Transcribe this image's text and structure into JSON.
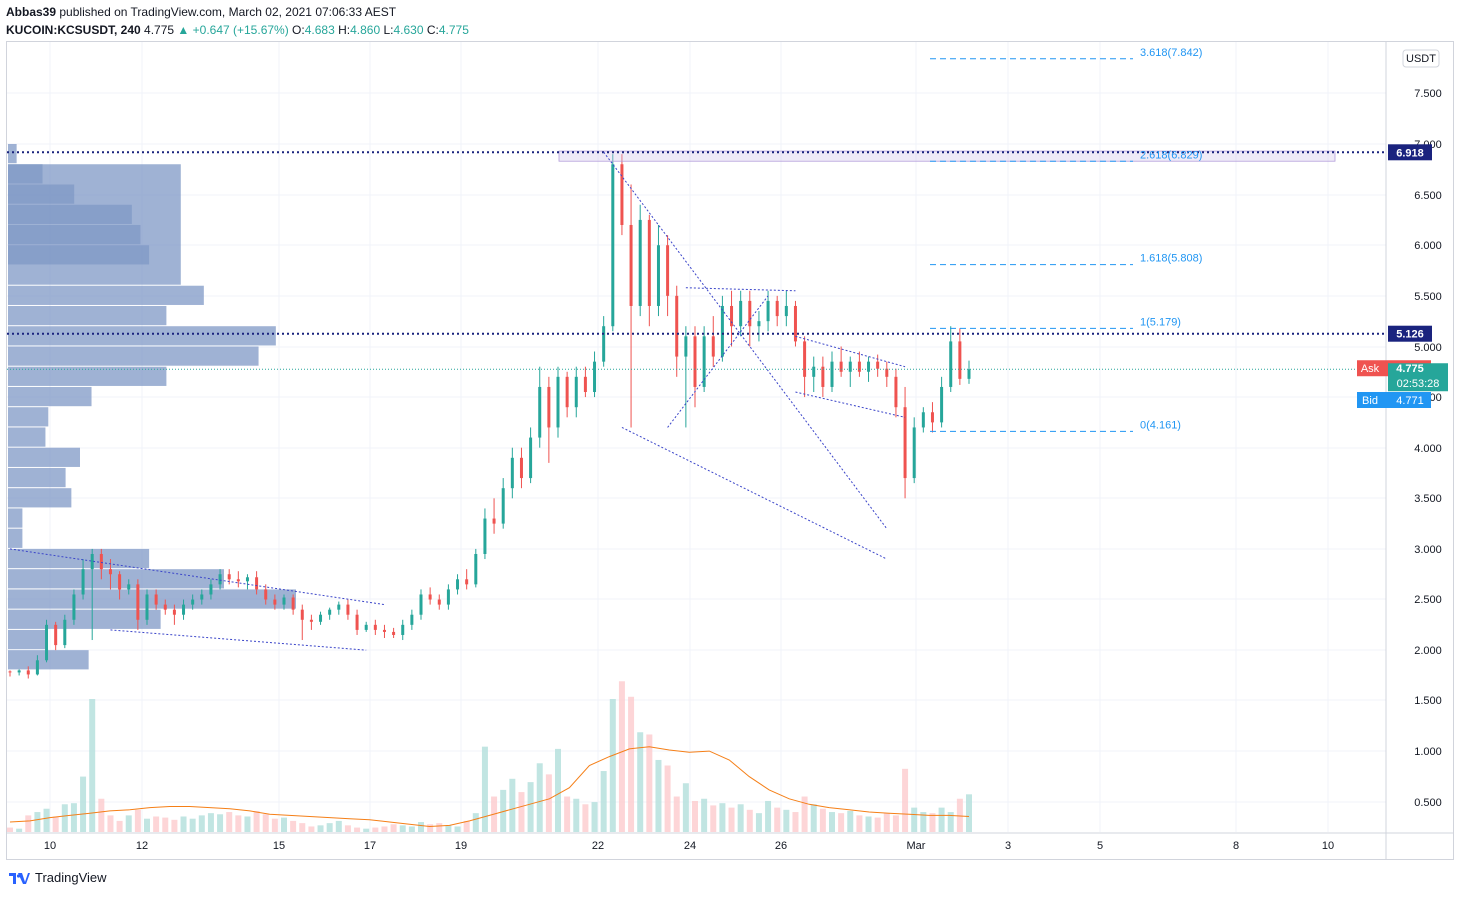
{
  "header": {
    "author": "Abbas39",
    "published_text": "published on TradingView.com, March 02, 2021 07:06:33 AEST",
    "symbol": "KUCOIN:KCSUSDT, 240",
    "last": "4.775",
    "change": "▲ +0.647 (+15.67%)",
    "o_label": "O:",
    "o_value": "4.683",
    "h_label": "H:",
    "h_value": "4.860",
    "l_label": "L:",
    "l_value": "4.630",
    "c_label": "C:",
    "c_value": "4.775"
  },
  "footer": {
    "brand": "TradingView"
  },
  "colors": {
    "up": "#26a69a",
    "down": "#ef5350",
    "vp": "#7f98c6",
    "pattern": "#3b45c9",
    "fib": "#2196f3",
    "ma": "#f57f17"
  },
  "chart_data": {
    "type": "candlestick",
    "currency_label": "USDT",
    "y_ticks": [
      "7.500",
      "7.000",
      "6.500",
      "6.000",
      "5.500",
      "5.000",
      "4.500",
      "4.000",
      "3.500",
      "3.000",
      "2.500",
      "2.000",
      "1.500",
      "1.000",
      "0.500"
    ],
    "x_ticks": [
      "10",
      "12",
      "15",
      "17",
      "19",
      "22",
      "24",
      "26",
      "Mar",
      "3",
      "5",
      "8",
      "10"
    ],
    "last_price": 4.775,
    "countdown": "02:53:28",
    "ask": {
      "label": "Ask",
      "value": "4.775"
    },
    "bid": {
      "label": "Bid",
      "value": "4.771"
    },
    "horizontal_levels": [
      {
        "value": 6.918,
        "label": "6.918"
      },
      {
        "value": 5.126,
        "label": "5.126"
      }
    ],
    "fib_levels": [
      {
        "label": "3.618(7.842)",
        "value": 7.842
      },
      {
        "label": "2.618(6.829)",
        "value": 6.829
      },
      {
        "label": "1.618(5.808)",
        "value": 5.808
      },
      {
        "label": "1(5.179)",
        "value": 5.179
      },
      {
        "label": "0(4.161)",
        "value": 4.161
      }
    ],
    "candles": [
      [
        1.79,
        1.8,
        1.74,
        1.78
      ],
      [
        1.78,
        1.81,
        1.75,
        1.8
      ],
      [
        1.8,
        1.84,
        1.72,
        1.76
      ],
      [
        1.76,
        1.95,
        1.75,
        1.9
      ],
      [
        1.9,
        2.3,
        1.88,
        2.25
      ],
      [
        2.25,
        2.28,
        2.0,
        2.05
      ],
      [
        2.05,
        2.35,
        2.02,
        2.3
      ],
      [
        2.3,
        2.6,
        2.25,
        2.55
      ],
      [
        2.55,
        2.9,
        2.5,
        2.8
      ],
      [
        2.8,
        3.0,
        2.1,
        2.95
      ],
      [
        2.95,
        3.0,
        2.7,
        2.8
      ],
      [
        2.8,
        2.9,
        2.6,
        2.75
      ],
      [
        2.75,
        2.78,
        2.5,
        2.6
      ],
      [
        2.6,
        2.7,
        2.55,
        2.65
      ],
      [
        2.65,
        2.7,
        2.2,
        2.3
      ],
      [
        2.3,
        2.6,
        2.25,
        2.55
      ],
      [
        2.55,
        2.6,
        2.4,
        2.45
      ],
      [
        2.45,
        2.5,
        2.35,
        2.4
      ],
      [
        2.4,
        2.45,
        2.25,
        2.35
      ],
      [
        2.35,
        2.5,
        2.3,
        2.45
      ],
      [
        2.45,
        2.55,
        2.4,
        2.5
      ],
      [
        2.5,
        2.6,
        2.45,
        2.55
      ],
      [
        2.55,
        2.7,
        2.5,
        2.65
      ],
      [
        2.65,
        2.8,
        2.6,
        2.75
      ],
      [
        2.75,
        2.8,
        2.65,
        2.7
      ],
      [
        2.7,
        2.78,
        2.62,
        2.68
      ],
      [
        2.68,
        2.75,
        2.6,
        2.72
      ],
      [
        2.72,
        2.78,
        2.55,
        2.6
      ],
      [
        2.6,
        2.65,
        2.45,
        2.5
      ],
      [
        2.5,
        2.55,
        2.4,
        2.45
      ],
      [
        2.45,
        2.55,
        2.4,
        2.52
      ],
      [
        2.52,
        2.55,
        2.35,
        2.4
      ],
      [
        2.4,
        2.45,
        2.1,
        2.3
      ],
      [
        2.3,
        2.35,
        2.2,
        2.28
      ],
      [
        2.28,
        2.38,
        2.25,
        2.35
      ],
      [
        2.35,
        2.42,
        2.3,
        2.4
      ],
      [
        2.4,
        2.48,
        2.35,
        2.45
      ],
      [
        2.45,
        2.5,
        2.3,
        2.35
      ],
      [
        2.35,
        2.4,
        2.15,
        2.2
      ],
      [
        2.2,
        2.28,
        2.18,
        2.25
      ],
      [
        2.25,
        2.3,
        2.15,
        2.2
      ],
      [
        2.2,
        2.25,
        2.12,
        2.18
      ],
      [
        2.18,
        2.22,
        2.12,
        2.15
      ],
      [
        2.15,
        2.3,
        2.1,
        2.25
      ],
      [
        2.25,
        2.4,
        2.2,
        2.35
      ],
      [
        2.35,
        2.6,
        2.3,
        2.55
      ],
      [
        2.55,
        2.62,
        2.45,
        2.5
      ],
      [
        2.5,
        2.55,
        2.4,
        2.45
      ],
      [
        2.45,
        2.65,
        2.4,
        2.6
      ],
      [
        2.6,
        2.75,
        2.55,
        2.7
      ],
      [
        2.7,
        2.8,
        2.6,
        2.65
      ],
      [
        2.65,
        3.0,
        2.62,
        2.95
      ],
      [
        2.95,
        3.4,
        2.9,
        3.3
      ],
      [
        3.3,
        3.5,
        3.15,
        3.25
      ],
      [
        3.25,
        3.7,
        3.2,
        3.6
      ],
      [
        3.6,
        4.0,
        3.5,
        3.9
      ],
      [
        3.9,
        4.0,
        3.6,
        3.7
      ],
      [
        3.7,
        4.2,
        3.65,
        4.1
      ],
      [
        4.1,
        4.8,
        4.0,
        4.6
      ],
      [
        4.6,
        4.7,
        3.85,
        4.2
      ],
      [
        4.2,
        4.8,
        4.1,
        4.7
      ],
      [
        4.7,
        4.75,
        4.3,
        4.4
      ],
      [
        4.4,
        4.8,
        4.3,
        4.7
      ],
      [
        4.7,
        4.8,
        4.5,
        4.55
      ],
      [
        4.55,
        4.95,
        4.5,
        4.85
      ],
      [
        4.85,
        5.3,
        4.8,
        5.2
      ],
      [
        5.2,
        6.9,
        5.15,
        6.8
      ],
      [
        6.8,
        6.9,
        6.1,
        6.2
      ],
      [
        6.2,
        6.6,
        4.2,
        5.4
      ],
      [
        5.4,
        6.4,
        5.3,
        6.25
      ],
      [
        6.25,
        6.3,
        5.2,
        5.4
      ],
      [
        5.4,
        6.2,
        5.3,
        6.0
      ],
      [
        6.0,
        6.1,
        5.3,
        5.5
      ],
      [
        5.5,
        5.6,
        4.7,
        4.9
      ],
      [
        4.9,
        5.2,
        4.2,
        5.1
      ],
      [
        5.1,
        5.2,
        4.4,
        4.6
      ],
      [
        4.6,
        5.2,
        4.55,
        5.1
      ],
      [
        5.1,
        5.3,
        4.8,
        4.9
      ],
      [
        4.9,
        5.5,
        4.85,
        5.4
      ],
      [
        5.4,
        5.55,
        5.0,
        5.2
      ],
      [
        5.2,
        5.55,
        5.1,
        5.45
      ],
      [
        5.45,
        5.55,
        5.0,
        5.2
      ],
      [
        5.2,
        5.35,
        5.05,
        5.25
      ],
      [
        5.25,
        5.55,
        5.15,
        5.45
      ],
      [
        5.45,
        5.5,
        5.2,
        5.3
      ],
      [
        5.3,
        5.55,
        5.2,
        5.4
      ],
      [
        5.4,
        5.45,
        5.0,
        5.05
      ],
      [
        5.05,
        5.1,
        4.5,
        4.7
      ],
      [
        4.7,
        4.9,
        4.55,
        4.8
      ],
      [
        4.8,
        4.9,
        4.5,
        4.6
      ],
      [
        4.6,
        4.95,
        4.55,
        4.85
      ],
      [
        4.85,
        5.0,
        4.7,
        4.75
      ],
      [
        4.75,
        4.9,
        4.6,
        4.85
      ],
      [
        4.85,
        4.95,
        4.7,
        4.75
      ],
      [
        4.75,
        4.9,
        4.65,
        4.85
      ],
      [
        4.85,
        4.92,
        4.7,
        4.78
      ],
      [
        4.78,
        4.85,
        4.6,
        4.7
      ],
      [
        4.7,
        4.78,
        4.3,
        4.4
      ],
      [
        4.4,
        4.6,
        3.5,
        3.7
      ],
      [
        3.7,
        4.3,
        3.65,
        4.2
      ],
      [
        4.2,
        4.4,
        4.15,
        4.35
      ],
      [
        4.35,
        4.45,
        4.15,
        4.25
      ],
      [
        4.25,
        4.7,
        4.2,
        4.6
      ],
      [
        4.6,
        5.2,
        4.55,
        5.05
      ],
      [
        5.05,
        5.18,
        4.62,
        4.68
      ],
      [
        4.68,
        4.86,
        4.63,
        4.775
      ]
    ],
    "volumes": [
      0.34,
      0.33,
      0.45,
      0.48,
      0.51,
      0.44,
      0.55,
      0.56,
      0.8,
      1.5,
      0.6,
      0.45,
      0.4,
      0.45,
      0.5,
      0.42,
      0.44,
      0.43,
      0.41,
      0.44,
      0.42,
      0.45,
      0.47,
      0.46,
      0.48,
      0.45,
      0.44,
      0.49,
      0.46,
      0.42,
      0.43,
      0.4,
      0.38,
      0.35,
      0.36,
      0.38,
      0.4,
      0.36,
      0.34,
      0.33,
      0.34,
      0.35,
      0.37,
      0.36,
      0.35,
      0.39,
      0.37,
      0.38,
      0.36,
      0.35,
      0.4,
      0.47,
      1.07,
      0.62,
      0.68,
      0.78,
      0.66,
      0.75,
      0.92,
      0.82,
      1.05,
      0.62,
      0.6,
      0.55,
      0.57,
      0.85,
      1.5,
      1.66,
      1.52,
      1.2,
      1.18,
      0.95,
      0.9,
      0.62,
      0.74,
      0.58,
      0.6,
      0.54,
      0.56,
      0.52,
      0.55,
      0.5,
      0.47,
      0.58,
      0.52,
      0.5,
      0.48,
      0.62,
      0.55,
      0.51,
      0.48,
      0.47,
      0.49,
      0.45,
      0.44,
      0.43,
      0.47,
      0.45,
      0.87,
      0.52,
      0.48,
      0.47,
      0.52,
      0.48,
      0.6,
      0.64,
      0.33
    ],
    "volume_ma": [
      0.39,
      0.4,
      0.43,
      0.45,
      0.47,
      0.49,
      0.5,
      0.52,
      0.53,
      0.53,
      0.52,
      0.51,
      0.49,
      0.46,
      0.45,
      0.44,
      0.43,
      0.42,
      0.41,
      0.39,
      0.37,
      0.35,
      0.36,
      0.4,
      0.45,
      0.5,
      0.55,
      0.6,
      0.7,
      0.9,
      0.98,
      1.05,
      1.07,
      1.04,
      1.02,
      1.03,
      0.95,
      0.8,
      0.68,
      0.6,
      0.55,
      0.52,
      0.5,
      0.48,
      0.47,
      0.46,
      0.45,
      0.45,
      0.44
    ],
    "volume_profile": [
      {
        "from": 6.8,
        "to": 7.0,
        "length": 0.03
      },
      {
        "from": 6.6,
        "to": 6.8,
        "length": 0.12
      },
      {
        "from": 6.4,
        "to": 6.6,
        "length": 0.23
      },
      {
        "from": 6.2,
        "to": 6.4,
        "length": 0.43
      },
      {
        "from": 6.0,
        "to": 6.2,
        "length": 0.46
      },
      {
        "from": 5.8,
        "to": 6.0,
        "length": 0.49
      },
      {
        "from": 5.6,
        "to": 6.8,
        "length": 0.6
      },
      {
        "from": 5.4,
        "to": 5.6,
        "length": 0.68
      },
      {
        "from": 5.2,
        "to": 5.4,
        "length": 0.55
      },
      {
        "from": 5.0,
        "to": 5.2,
        "length": 0.93
      },
      {
        "from": 4.8,
        "to": 5.0,
        "length": 0.87
      },
      {
        "from": 4.6,
        "to": 4.8,
        "length": 0.55
      },
      {
        "from": 4.4,
        "to": 4.6,
        "length": 0.29
      },
      {
        "from": 4.2,
        "to": 4.4,
        "length": 0.14
      },
      {
        "from": 4.0,
        "to": 4.2,
        "length": 0.13
      },
      {
        "from": 3.8,
        "to": 4.0,
        "length": 0.25
      },
      {
        "from": 3.6,
        "to": 3.8,
        "length": 0.2
      },
      {
        "from": 3.4,
        "to": 3.6,
        "length": 0.22
      },
      {
        "from": 3.2,
        "to": 3.4,
        "length": 0.05
      },
      {
        "from": 3.0,
        "to": 3.2,
        "length": 0.05
      },
      {
        "from": 2.8,
        "to": 3.0,
        "length": 0.49
      },
      {
        "from": 2.6,
        "to": 2.8,
        "length": 0.75
      },
      {
        "from": 2.4,
        "to": 2.6,
        "length": 1.0
      },
      {
        "from": 2.2,
        "to": 2.4,
        "length": 0.53
      },
      {
        "from": 2.0,
        "to": 2.2,
        "length": 0.13
      },
      {
        "from": 1.8,
        "to": 2.0,
        "length": 0.28
      }
    ],
    "trendlines": [
      [
        0,
        3.0,
        41,
        2.45
      ],
      [
        11,
        2.2,
        39,
        2.0
      ],
      [
        65,
        6.92,
        96,
        3.2
      ],
      [
        67,
        4.2,
        96,
        2.9
      ],
      [
        72,
        4.2,
        83,
        5.5
      ],
      [
        74,
        5.58,
        86,
        5.55
      ],
      [
        86,
        5.1,
        98,
        4.8
      ],
      [
        86,
        4.55,
        98,
        4.3
      ]
    ]
  }
}
